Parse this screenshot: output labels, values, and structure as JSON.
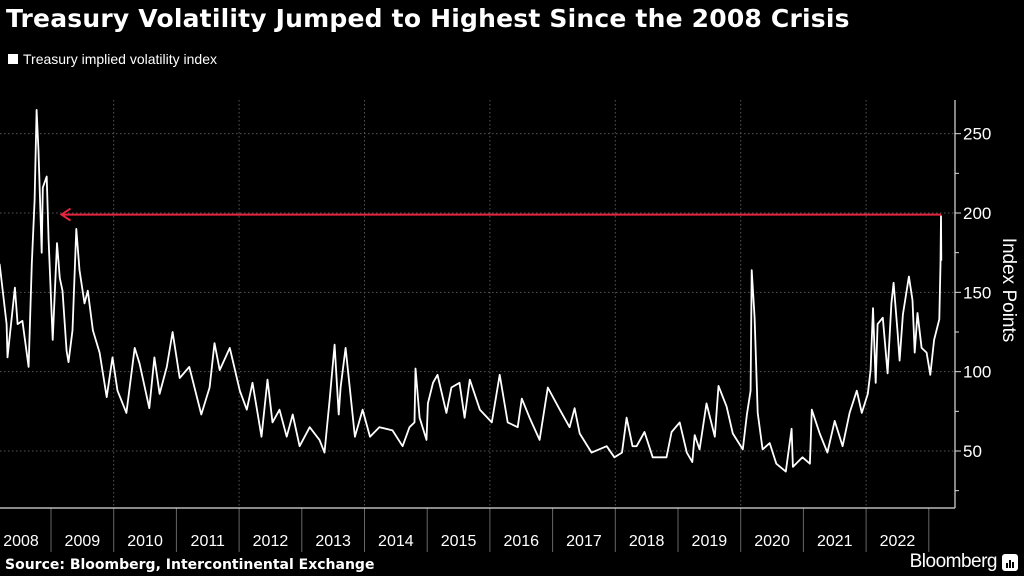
{
  "header": {
    "title": "Treasury Volatility Jumped to Highest Since the 2008 Crisis"
  },
  "footer": {
    "source": "Source: Bloomberg, Intercontinental Exchange",
    "logo": "Bloomberg"
  },
  "chart_data": {
    "type": "line",
    "title": "Treasury Volatility Jumped to Highest Since the 2008 Crisis",
    "ylabel": "Index Points",
    "xlabel": "",
    "ylim": [
      15,
      270
    ],
    "xlim": [
      "2008-03-01",
      "2023-04-15"
    ],
    "y_ticks": [
      50,
      100,
      150,
      200,
      250
    ],
    "x_tick_labels": [
      "2008",
      "2009",
      "2010",
      "2011",
      "2012",
      "2013",
      "2014",
      "2015",
      "2016",
      "2017",
      "2018",
      "2019",
      "2020",
      "2021",
      "2022"
    ],
    "grid": true,
    "legend_placement": "top-left",
    "background_color": "#000000",
    "line_color": "#ffffff",
    "reference_line": {
      "value": 199,
      "from": "2023-03-13",
      "to": "2009-03-03",
      "color": "#e8253f",
      "arrow": "left"
    },
    "series": [
      {
        "name": "Treasury implied volatility index",
        "points": [
          [
            "2008-03-07",
            168
          ],
          [
            "2008-04-17",
            130
          ],
          [
            "2008-04-22",
            109
          ],
          [
            "2008-06-04",
            153
          ],
          [
            "2008-06-20",
            130
          ],
          [
            "2008-07-18",
            132
          ],
          [
            "2008-08-23",
            103
          ],
          [
            "2008-09-11",
            168
          ],
          [
            "2008-09-27",
            208
          ],
          [
            "2008-10-09",
            265
          ],
          [
            "2008-10-20",
            239
          ],
          [
            "2008-11-08",
            175
          ],
          [
            "2008-11-14",
            216
          ],
          [
            "2008-12-07",
            223
          ],
          [
            "2008-12-18",
            183
          ],
          [
            "2009-01-11",
            120
          ],
          [
            "2009-02-05",
            181
          ],
          [
            "2009-02-21",
            159
          ],
          [
            "2009-03-09",
            151
          ],
          [
            "2009-04-02",
            113
          ],
          [
            "2009-04-13",
            106
          ],
          [
            "2009-05-06",
            126
          ],
          [
            "2009-05-28",
            190
          ],
          [
            "2009-06-16",
            164
          ],
          [
            "2009-07-15",
            143
          ],
          [
            "2009-08-03",
            151
          ],
          [
            "2009-09-02",
            126
          ],
          [
            "2009-10-11",
            112
          ],
          [
            "2009-11-21",
            84
          ],
          [
            "2009-12-25",
            109
          ],
          [
            "2010-01-23",
            88
          ],
          [
            "2010-03-16",
            74
          ],
          [
            "2010-05-03",
            115
          ],
          [
            "2010-06-01",
            105
          ],
          [
            "2010-07-27",
            77
          ],
          [
            "2010-08-26",
            109
          ],
          [
            "2010-09-25",
            86
          ],
          [
            "2010-11-06",
            103
          ],
          [
            "2010-12-10",
            125
          ],
          [
            "2011-01-20",
            96
          ],
          [
            "2011-03-17",
            103
          ],
          [
            "2011-05-26",
            73
          ],
          [
            "2011-07-13",
            90
          ],
          [
            "2011-08-11",
            118
          ],
          [
            "2011-09-10",
            101
          ],
          [
            "2011-11-08",
            115
          ],
          [
            "2012-01-05",
            88
          ],
          [
            "2012-02-15",
            76
          ],
          [
            "2012-03-19",
            93
          ],
          [
            "2012-05-11",
            59
          ],
          [
            "2012-06-15",
            95
          ],
          [
            "2012-07-14",
            68
          ],
          [
            "2012-08-24",
            76
          ],
          [
            "2012-10-05",
            59
          ],
          [
            "2012-11-09",
            73
          ],
          [
            "2012-12-19",
            53
          ],
          [
            "2013-02-16",
            65
          ],
          [
            "2013-04-14",
            57
          ],
          [
            "2013-05-13",
            49
          ],
          [
            "2013-06-12",
            82
          ],
          [
            "2013-07-11",
            117
          ],
          [
            "2013-08-04",
            73
          ],
          [
            "2013-08-15",
            90
          ],
          [
            "2013-09-13",
            115
          ],
          [
            "2013-11-06",
            59
          ],
          [
            "2013-12-21",
            76
          ],
          [
            "2014-02-02",
            59
          ],
          [
            "2014-03-28",
            65
          ],
          [
            "2014-06-13",
            63
          ],
          [
            "2014-08-11",
            53
          ],
          [
            "2014-09-20",
            65
          ],
          [
            "2014-10-19",
            68
          ],
          [
            "2014-10-25",
            102
          ],
          [
            "2014-11-18",
            71
          ],
          [
            "2014-12-28",
            57
          ],
          [
            "2015-01-05",
            80
          ],
          [
            "2015-02-04",
            93
          ],
          [
            "2015-03-02",
            98
          ],
          [
            "2015-04-23",
            74
          ],
          [
            "2015-05-22",
            90
          ],
          [
            "2015-07-08",
            93
          ],
          [
            "2015-08-07",
            71
          ],
          [
            "2015-09-06",
            95
          ],
          [
            "2015-11-04",
            76
          ],
          [
            "2016-01-12",
            68
          ],
          [
            "2016-02-27",
            98
          ],
          [
            "2016-04-14",
            68
          ],
          [
            "2016-06-11",
            65
          ],
          [
            "2016-07-05",
            83
          ],
          [
            "2016-08-20",
            71
          ],
          [
            "2016-10-17",
            57
          ],
          [
            "2016-12-04",
            90
          ],
          [
            "2017-02-12",
            76
          ],
          [
            "2017-04-10",
            65
          ],
          [
            "2017-05-09",
            77
          ],
          [
            "2017-06-08",
            61
          ],
          [
            "2017-08-16",
            49
          ],
          [
            "2017-11-12",
            53
          ],
          [
            "2017-12-27",
            46
          ],
          [
            "2018-02-09",
            49
          ],
          [
            "2018-03-08",
            71
          ],
          [
            "2018-04-11",
            53
          ],
          [
            "2018-05-05",
            53
          ],
          [
            "2018-06-20",
            62
          ],
          [
            "2018-08-07",
            46
          ],
          [
            "2018-10-26",
            46
          ],
          [
            "2018-11-25",
            62
          ],
          [
            "2019-01-11",
            68
          ],
          [
            "2019-02-21",
            49
          ],
          [
            "2019-03-25",
            43
          ],
          [
            "2019-04-08",
            60
          ],
          [
            "2019-05-07",
            51
          ],
          [
            "2019-06-16",
            80
          ],
          [
            "2019-08-03",
            59
          ],
          [
            "2019-08-25",
            91
          ],
          [
            "2019-10-11",
            78
          ],
          [
            "2019-11-16",
            61
          ],
          [
            "2020-01-13",
            51
          ],
          [
            "2020-02-06",
            73
          ],
          [
            "2020-02-28",
            88
          ],
          [
            "2020-03-05",
            164
          ],
          [
            "2020-03-22",
            134
          ],
          [
            "2020-04-09",
            74
          ],
          [
            "2020-05-08",
            51
          ],
          [
            "2020-06-18",
            55
          ],
          [
            "2020-07-27",
            42
          ],
          [
            "2020-09-20",
            37
          ],
          [
            "2020-10-24",
            64
          ],
          [
            "2020-11-01",
            40
          ],
          [
            "2020-12-27",
            46
          ],
          [
            "2021-02-08",
            42
          ],
          [
            "2021-02-19",
            76
          ],
          [
            "2021-04-06",
            61
          ],
          [
            "2021-05-21",
            49
          ],
          [
            "2021-07-02",
            69
          ],
          [
            "2021-08-17",
            53
          ],
          [
            "2021-09-27",
            74
          ],
          [
            "2021-11-08",
            88
          ],
          [
            "2021-12-07",
            74
          ],
          [
            "2022-01-11",
            86
          ],
          [
            "2022-01-27",
            101
          ],
          [
            "2022-02-10",
            140
          ],
          [
            "2022-02-26",
            93
          ],
          [
            "2022-03-09",
            130
          ],
          [
            "2022-04-08",
            134
          ],
          [
            "2022-05-06",
            99
          ],
          [
            "2022-05-28",
            143
          ],
          [
            "2022-06-10",
            156
          ],
          [
            "2022-07-04",
            124
          ],
          [
            "2022-07-15",
            107
          ],
          [
            "2022-08-03",
            136
          ],
          [
            "2022-09-07",
            160
          ],
          [
            "2022-09-28",
            145
          ],
          [
            "2022-10-11",
            112
          ],
          [
            "2022-10-27",
            137
          ],
          [
            "2022-11-20",
            115
          ],
          [
            "2022-12-19",
            112
          ],
          [
            "2023-01-10",
            98
          ],
          [
            "2023-02-01",
            120
          ],
          [
            "2023-03-03",
            133
          ],
          [
            "2023-03-10",
            168
          ],
          [
            "2023-03-13",
            198
          ],
          [
            "2023-03-15",
            170
          ]
        ]
      }
    ]
  }
}
